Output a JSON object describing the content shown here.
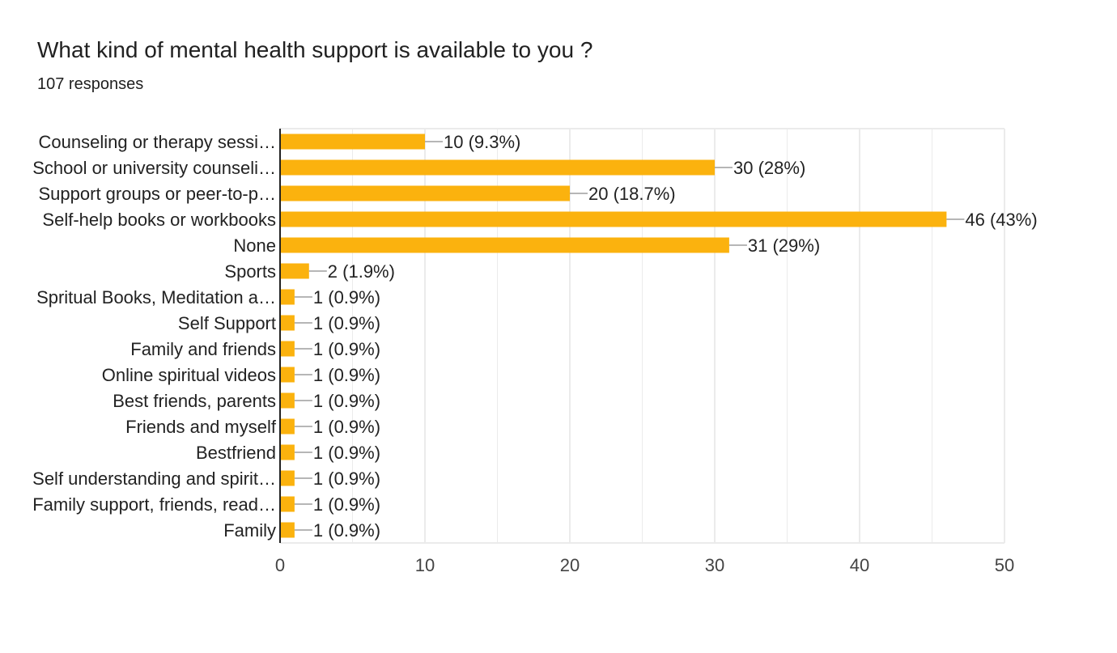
{
  "header": {
    "title": "What kind of mental health support is available to you ?",
    "responses": "107 responses"
  },
  "colors": {
    "bar": "#fbb20e",
    "grid": "#ebebeb",
    "axis": "#222222",
    "leader": "#9e9e9e"
  },
  "chart_data": {
    "type": "bar",
    "orientation": "horizontal",
    "categories": [
      "Counseling or therapy sessi…",
      "School or university counseli…",
      "Support groups or peer-to-p…",
      "Self-help books or workbooks",
      "None",
      "Sports",
      "Spritual Books, Meditation a…",
      "Self Support",
      "Family and friends",
      "Online spiritual videos",
      "Best friends, parents",
      "Friends and myself",
      "Bestfriend",
      "Self understanding and spirit…",
      "Family support, friends, read…",
      "Family"
    ],
    "values": [
      10,
      30,
      20,
      46,
      31,
      2,
      1,
      1,
      1,
      1,
      1,
      1,
      1,
      1,
      1,
      1
    ],
    "value_labels": [
      "10 (9.3%)",
      "30 (28%)",
      "20 (18.7%)",
      "46 (43%)",
      "31 (29%)",
      "2 (1.9%)",
      "1 (0.9%)",
      "1 (0.9%)",
      "1 (0.9%)",
      "1 (0.9%)",
      "1 (0.9%)",
      "1 (0.9%)",
      "1 (0.9%)",
      "1 (0.9%)",
      "1 (0.9%)",
      "1 (0.9%)"
    ],
    "xlim": [
      0,
      50
    ],
    "xticks": [
      0,
      10,
      20,
      30,
      40,
      50
    ],
    "grid": true
  }
}
